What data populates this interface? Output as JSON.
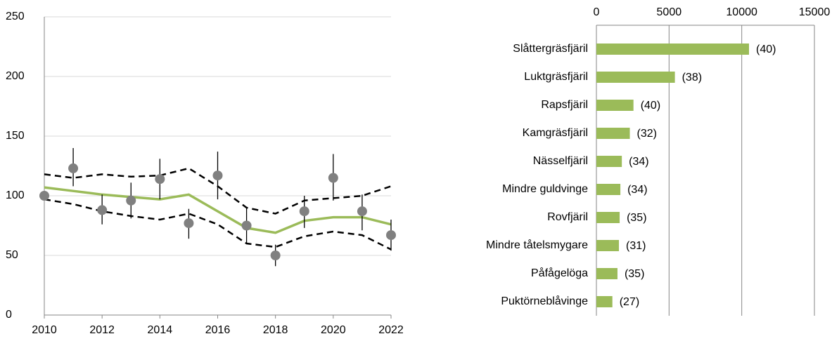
{
  "chart_data": [
    {
      "type": "line",
      "x": [
        2010,
        2011,
        2012,
        2013,
        2014,
        2015,
        2016,
        2017,
        2018,
        2019,
        2020,
        2021,
        2022
      ],
      "xlim": [
        2010,
        2022
      ],
      "xticks": [
        2010,
        2012,
        2014,
        2016,
        2018,
        2020,
        2022
      ],
      "ylim": [
        0,
        250
      ],
      "yticks": [
        0,
        50,
        100,
        150,
        200,
        250
      ],
      "grid": true,
      "series": [
        {
          "style": "dashed",
          "color": "#000000",
          "values": [
            118,
            115,
            118,
            116,
            117,
            123,
            108,
            90,
            85,
            96,
            98,
            100,
            108
          ]
        },
        {
          "style": "dashed",
          "color": "#000000",
          "values": [
            97,
            93,
            87,
            83,
            80,
            85,
            76,
            60,
            57,
            66,
            70,
            67,
            55
          ]
        },
        {
          "style": "solid",
          "color": "#9bbb59",
          "values": [
            107,
            104,
            101,
            99,
            97,
            101,
            87,
            73,
            69,
            79,
            82,
            82,
            76
          ]
        },
        {
          "style": "points",
          "color": "#808080",
          "values": [
            100,
            123,
            88,
            96,
            114,
            77,
            117,
            75,
            50,
            87,
            115,
            87,
            67
          ],
          "error_low": [
            null,
            108,
            76,
            81,
            97,
            64,
            97,
            60,
            41,
            73,
            96,
            71,
            54
          ],
          "error_high": [
            null,
            140,
            101,
            111,
            131,
            89,
            137,
            90,
            59,
            100,
            135,
            101,
            80
          ]
        }
      ]
    },
    {
      "type": "hbar",
      "categories": [
        "Slåttergräsfjäril",
        "Luktgräsfjäril",
        "Rapsfjäril",
        "Kamgräsfjäril",
        "Nässelfjäril",
        "Mindre guldvinge",
        "Rovfjäril",
        "Mindre tåtelsmygare",
        "Påfågelöga",
        "Puktörneblåvinge"
      ],
      "values": [
        10500,
        5400,
        2550,
        2300,
        1750,
        1650,
        1600,
        1550,
        1450,
        1100
      ],
      "bar_annotations": [
        "(40)",
        "(38)",
        "(40)",
        "(32)",
        "(34)",
        "(34)",
        "(35)",
        "(31)",
        "(35)",
        "(27)"
      ],
      "color": "#9bbb59",
      "xlim": [
        0,
        15000
      ],
      "xticks": [
        0,
        5000,
        10000,
        15000
      ],
      "grid": true
    }
  ]
}
